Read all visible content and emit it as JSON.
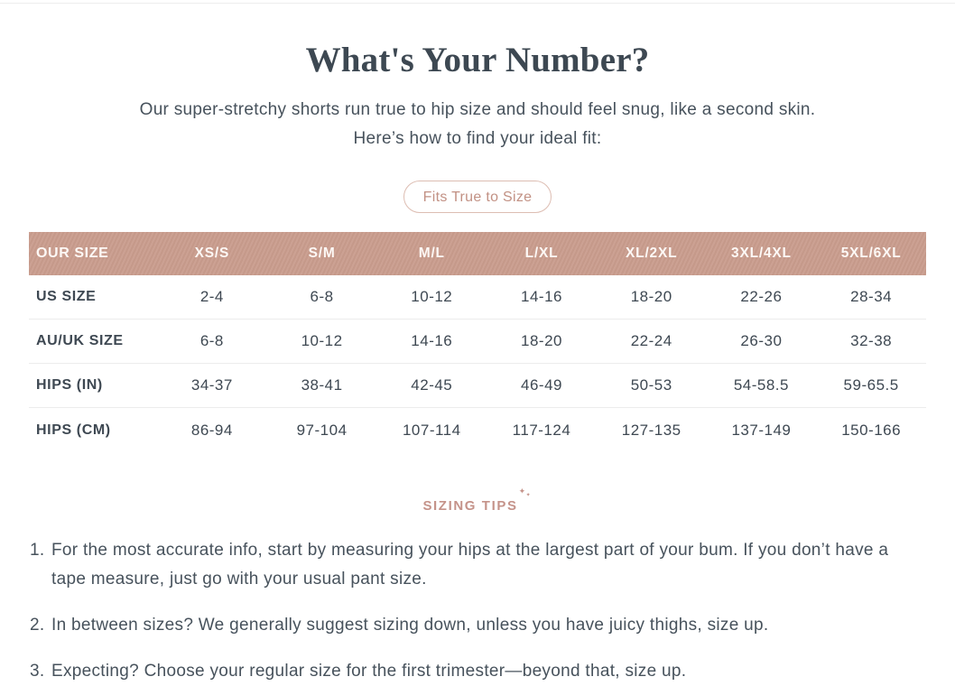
{
  "header": {
    "title": "What's Your Number?",
    "subtitle_line1": "Our super-stretchy shorts run true to hip size and should feel snug, like a second skin.",
    "subtitle_line2": "Here’s how to find your ideal fit:",
    "fit_badge_label": "Fits True to Size"
  },
  "size_table": {
    "columns": [
      "OUR SIZE",
      "XS/S",
      "S/M",
      "M/L",
      "L/XL",
      "XL/2XL",
      "3XL/4XL",
      "5XL/6XL"
    ],
    "rows": [
      {
        "label": "US SIZE",
        "values": [
          "2-4",
          "6-8",
          "10-12",
          "14-16",
          "18-20",
          "22-26",
          "28-34"
        ]
      },
      {
        "label": "AU/UK SIZE",
        "values": [
          "6-8",
          "10-12",
          "14-16",
          "18-20",
          "22-24",
          "26-30",
          "32-38"
        ]
      },
      {
        "label": "HIPS (IN)",
        "values": [
          "34-37",
          "38-41",
          "42-45",
          "46-49",
          "50-53",
          "54-58.5",
          "59-65.5"
        ]
      },
      {
        "label": "HIPS (CM)",
        "values": [
          "86-94",
          "97-104",
          "107-114",
          "117-124",
          "127-135",
          "137-149",
          "150-166"
        ]
      }
    ]
  },
  "tips": {
    "heading": "SIZING TIPS",
    "items": [
      "For the most accurate info, start by measuring your hips at the largest part of your bum. If you don’t have a tape measure, just go with your usual pant size.",
      "In between sizes? We generally suggest sizing down, unless you have juicy thighs, size up.",
      "Expecting? Choose your regular size for the first trimester—beyond that, size up."
    ]
  },
  "icons": {
    "sparkle": "✦"
  },
  "colors": {
    "accent_rose": "#c5938a",
    "pill_border": "#ddbdb2",
    "table_header_bg": "#c99c8d",
    "table_header_text": "#fdf8f5",
    "text_dark": "#3d4852",
    "text_body": "#47525c",
    "divider": "#ececec"
  }
}
